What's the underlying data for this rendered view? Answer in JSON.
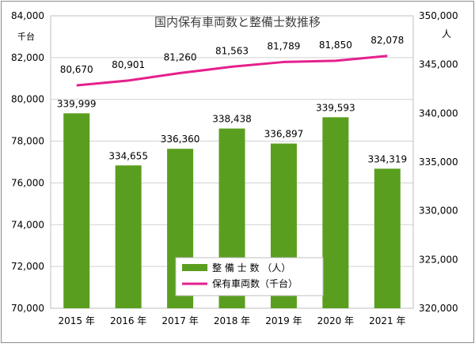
{
  "chart_data": {
    "type": "bar",
    "title": "国内保有車両数と整備士数推移",
    "categories": [
      "2015 年",
      "2016 年",
      "2017 年",
      "2018 年",
      "2019 年",
      "2020 年",
      "2021 年"
    ],
    "left_axis": {
      "unit": "千台",
      "ylim": [
        70000,
        84000
      ],
      "ticks": [
        "70,000",
        "72,000",
        "74,000",
        "76,000",
        "78,000",
        "80,000",
        "82,000",
        "84,000"
      ]
    },
    "right_axis": {
      "unit": "人",
      "ylim": [
        320000,
        350000
      ],
      "ticks": [
        "320,000",
        "325,000",
        "330,000",
        "335,000",
        "340,000",
        "345,000",
        "350,000"
      ]
    },
    "series": [
      {
        "name": "整 備 士 数 （人）",
        "type": "bar",
        "axis": "right",
        "color": "#5a9e1f",
        "values": [
          339999,
          334655,
          336360,
          338438,
          336897,
          339593,
          334319
        ],
        "labels": [
          "339,999",
          "334,655",
          "336,360",
          "338,438",
          "336,897",
          "339,593",
          "334,319"
        ]
      },
      {
        "name": "保有車両数（千台）",
        "type": "line",
        "axis": "left",
        "color": "#e5208c",
        "values": [
          80670,
          80901,
          81260,
          81563,
          81789,
          81850,
          82078
        ],
        "labels": [
          "80,670",
          "80,901",
          "81,260",
          "81,563",
          "81,789",
          "81,850",
          "82,078"
        ]
      }
    ],
    "grid": true,
    "legend": "bottom-center"
  }
}
